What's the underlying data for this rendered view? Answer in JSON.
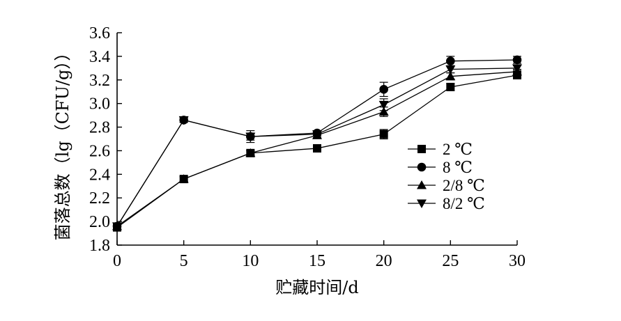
{
  "chart_data": {
    "type": "line",
    "xlabel": "贮藏时间/d",
    "ylabel": "菌落总数（lg（CFU/g））",
    "x": [
      0,
      5,
      10,
      15,
      20,
      25,
      30
    ],
    "xlim": [
      0,
      30
    ],
    "ylim": [
      1.8,
      3.6
    ],
    "xticks": [
      "0",
      "5",
      "10",
      "15",
      "20",
      "25",
      "30"
    ],
    "yticks": [
      "1.8",
      "2.0",
      "2.2",
      "2.4",
      "2.6",
      "2.8",
      "3.0",
      "3.2",
      "3.4",
      "3.6"
    ],
    "grid": false,
    "legend_position": "right",
    "series": [
      {
        "name": "2 ℃",
        "marker": "square",
        "values": [
          1.95,
          2.36,
          2.58,
          2.62,
          2.74,
          3.14,
          3.24
        ],
        "errors": [
          0.02,
          0.02,
          0.02,
          0.03,
          0.04,
          0.03,
          0.02
        ]
      },
      {
        "name": "8 ℃",
        "marker": "circle",
        "values": [
          1.96,
          2.86,
          2.72,
          2.75,
          3.12,
          3.36,
          3.37
        ],
        "errors": [
          0.02,
          0.02,
          0.05,
          0.02,
          0.06,
          0.04,
          0.03
        ]
      },
      {
        "name": "2/8 ℃",
        "marker": "triangle-up",
        "values": [
          1.96,
          2.36,
          2.58,
          2.73,
          2.93,
          3.23,
          3.27
        ],
        "errors": [
          0.02,
          0.02,
          0.02,
          0.02,
          0.04,
          0.03,
          0.02
        ]
      },
      {
        "name": "8/2 ℃",
        "marker": "triangle-down",
        "values": [
          1.96,
          2.86,
          2.72,
          2.74,
          2.99,
          3.29,
          3.3
        ],
        "errors": [
          0.02,
          0.02,
          0.03,
          0.02,
          0.05,
          0.03,
          0.02
        ]
      }
    ]
  }
}
